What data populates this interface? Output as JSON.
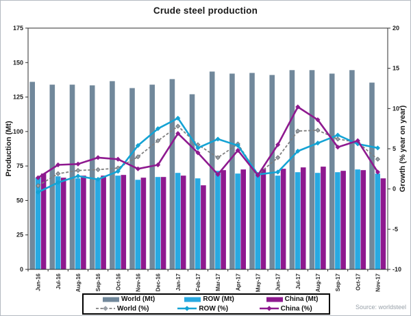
{
  "chart_data": {
    "type": "combo-bar-line",
    "title": "Crude steel production",
    "source": "Source: worldsteel",
    "grid": false,
    "legend_position": "bottom",
    "categories": [
      "Jun-16",
      "Jul-16",
      "Aug-16",
      "Sep-16",
      "Oct-16",
      "Nov-16",
      "Dec-16",
      "Jan-17",
      "Feb-17",
      "Mar-17",
      "Apr-17",
      "May-17",
      "Jun-17",
      "Jul-17",
      "Aug-17",
      "Sep-17",
      "Oct-17",
      "Nov-17"
    ],
    "left_axis": {
      "label": "Production (Mt)",
      "min": 0,
      "max": 175,
      "step": 25
    },
    "right_axis": {
      "label": "Growth (% year on year)",
      "min": -10,
      "max": 20,
      "step": 5
    },
    "series": [
      {
        "name": "World (Mt)",
        "kind": "bar",
        "axis": "left",
        "color": "#71889B",
        "values": [
          136,
          134,
          134,
          133.5,
          136.5,
          131.5,
          134,
          138,
          127,
          143.5,
          142,
          142.5,
          141,
          144.5,
          144.5,
          142,
          144.5,
          135.5
        ]
      },
      {
        "name": "ROW (Mt)",
        "kind": "bar",
        "axis": "left",
        "color": "#29A9E1",
        "values": [
          66.5,
          67.5,
          66,
          65.5,
          68,
          65,
          67,
          70,
          66,
          71.5,
          69.5,
          69.5,
          68,
          70.5,
          70,
          70.5,
          72.5,
          69.5
        ]
      },
      {
        "name": "China (Mt)",
        "kind": "bar",
        "axis": "left",
        "color": "#8E198F",
        "values": [
          69.5,
          66.5,
          68,
          68,
          68.5,
          66.5,
          67,
          68,
          61,
          72,
          72.5,
          73,
          73,
          74,
          74.5,
          71.5,
          72,
          66
        ]
      },
      {
        "name": "World (%)",
        "kind": "line",
        "axis": "right",
        "color": "#7F7F7F",
        "width": 1.8,
        "dash": "4 2.5",
        "marker": "diamond",
        "marker_size": 3,
        "marker_fill": "#9BA1A8",
        "marker_stroke": "#6E7377",
        "values": [
          0.4,
          1.9,
          2.3,
          2.4,
          2.6,
          4.0,
          6.0,
          7.8,
          5.5,
          3.9,
          5.6,
          1.8,
          3.9,
          7.2,
          7.3,
          6.2,
          5.8,
          3.7
        ]
      },
      {
        "name": "ROW (%)",
        "kind": "line",
        "axis": "right",
        "color": "#14A3D4",
        "width": 2.6,
        "marker": "diamond",
        "marker_size": 3.6,
        "values": [
          -0.4,
          0.8,
          1.6,
          1.2,
          2.2,
          5.4,
          7.5,
          8.8,
          5.1,
          6.2,
          5.4,
          1.8,
          2.1,
          4.7,
          5.7,
          6.7,
          5.6,
          5.1
        ]
      },
      {
        "name": "China (%)",
        "kind": "line",
        "axis": "right",
        "color": "#8E198F",
        "width": 2.6,
        "marker": "diamond",
        "marker_size": 3.6,
        "values": [
          1.4,
          3.0,
          3.1,
          3.9,
          3.7,
          2.5,
          3.0,
          6.9,
          4.5,
          1.8,
          4.8,
          1.7,
          5.5,
          10.2,
          8.6,
          5.2,
          6.0,
          2.1
        ]
      }
    ]
  }
}
